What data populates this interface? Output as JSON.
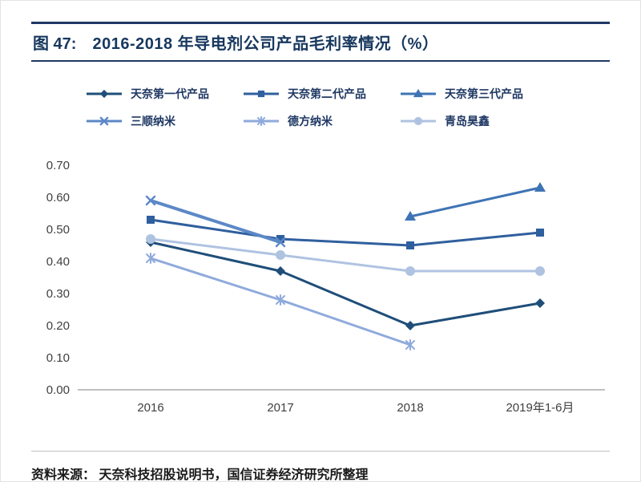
{
  "header": {
    "figure_label": "图 47:",
    "title": "2016-2018 年导电剂公司产品毛利率情况（%）"
  },
  "chart_data": {
    "type": "line",
    "title": "2016-2018 年导电剂公司产品毛利率情况（%）",
    "categories": [
      "2016",
      "2017",
      "2018",
      "2019年1-6月"
    ],
    "series": [
      {
        "name": "天奈第一代产品",
        "marker": "diamond",
        "color": "#1F4E79",
        "line_width": 3,
        "values": [
          0.46,
          0.37,
          0.2,
          0.27
        ]
      },
      {
        "name": "天奈第二代产品",
        "marker": "square",
        "color": "#2F5F9E",
        "line_width": 3,
        "values": [
          0.53,
          0.47,
          0.45,
          0.49
        ]
      },
      {
        "name": "天奈第三代产品",
        "marker": "triangle",
        "color": "#3E74B5",
        "line_width": 3,
        "values": [
          null,
          null,
          0.54,
          0.63
        ]
      },
      {
        "name": "三顺纳米",
        "marker": "x",
        "color": "#5C88C7",
        "line_width": 4,
        "values": [
          0.59,
          0.46,
          null,
          null
        ]
      },
      {
        "name": "德方纳米",
        "marker": "asterisk",
        "color": "#8FAADC",
        "line_width": 3,
        "values": [
          0.41,
          0.28,
          0.14,
          null
        ]
      },
      {
        "name": "青岛昊鑫",
        "marker": "circle",
        "color": "#AFC3E1",
        "line_width": 3,
        "values": [
          0.47,
          0.42,
          0.37,
          0.37
        ]
      }
    ],
    "ylim": [
      0,
      0.7
    ],
    "ytick_step": 0.1,
    "ytick_format": "0.00",
    "grid": false,
    "legend_position": "top"
  },
  "footer": {
    "source": "资料来源： 天奈科技招股说明书，国信证券经济研究所整理"
  }
}
